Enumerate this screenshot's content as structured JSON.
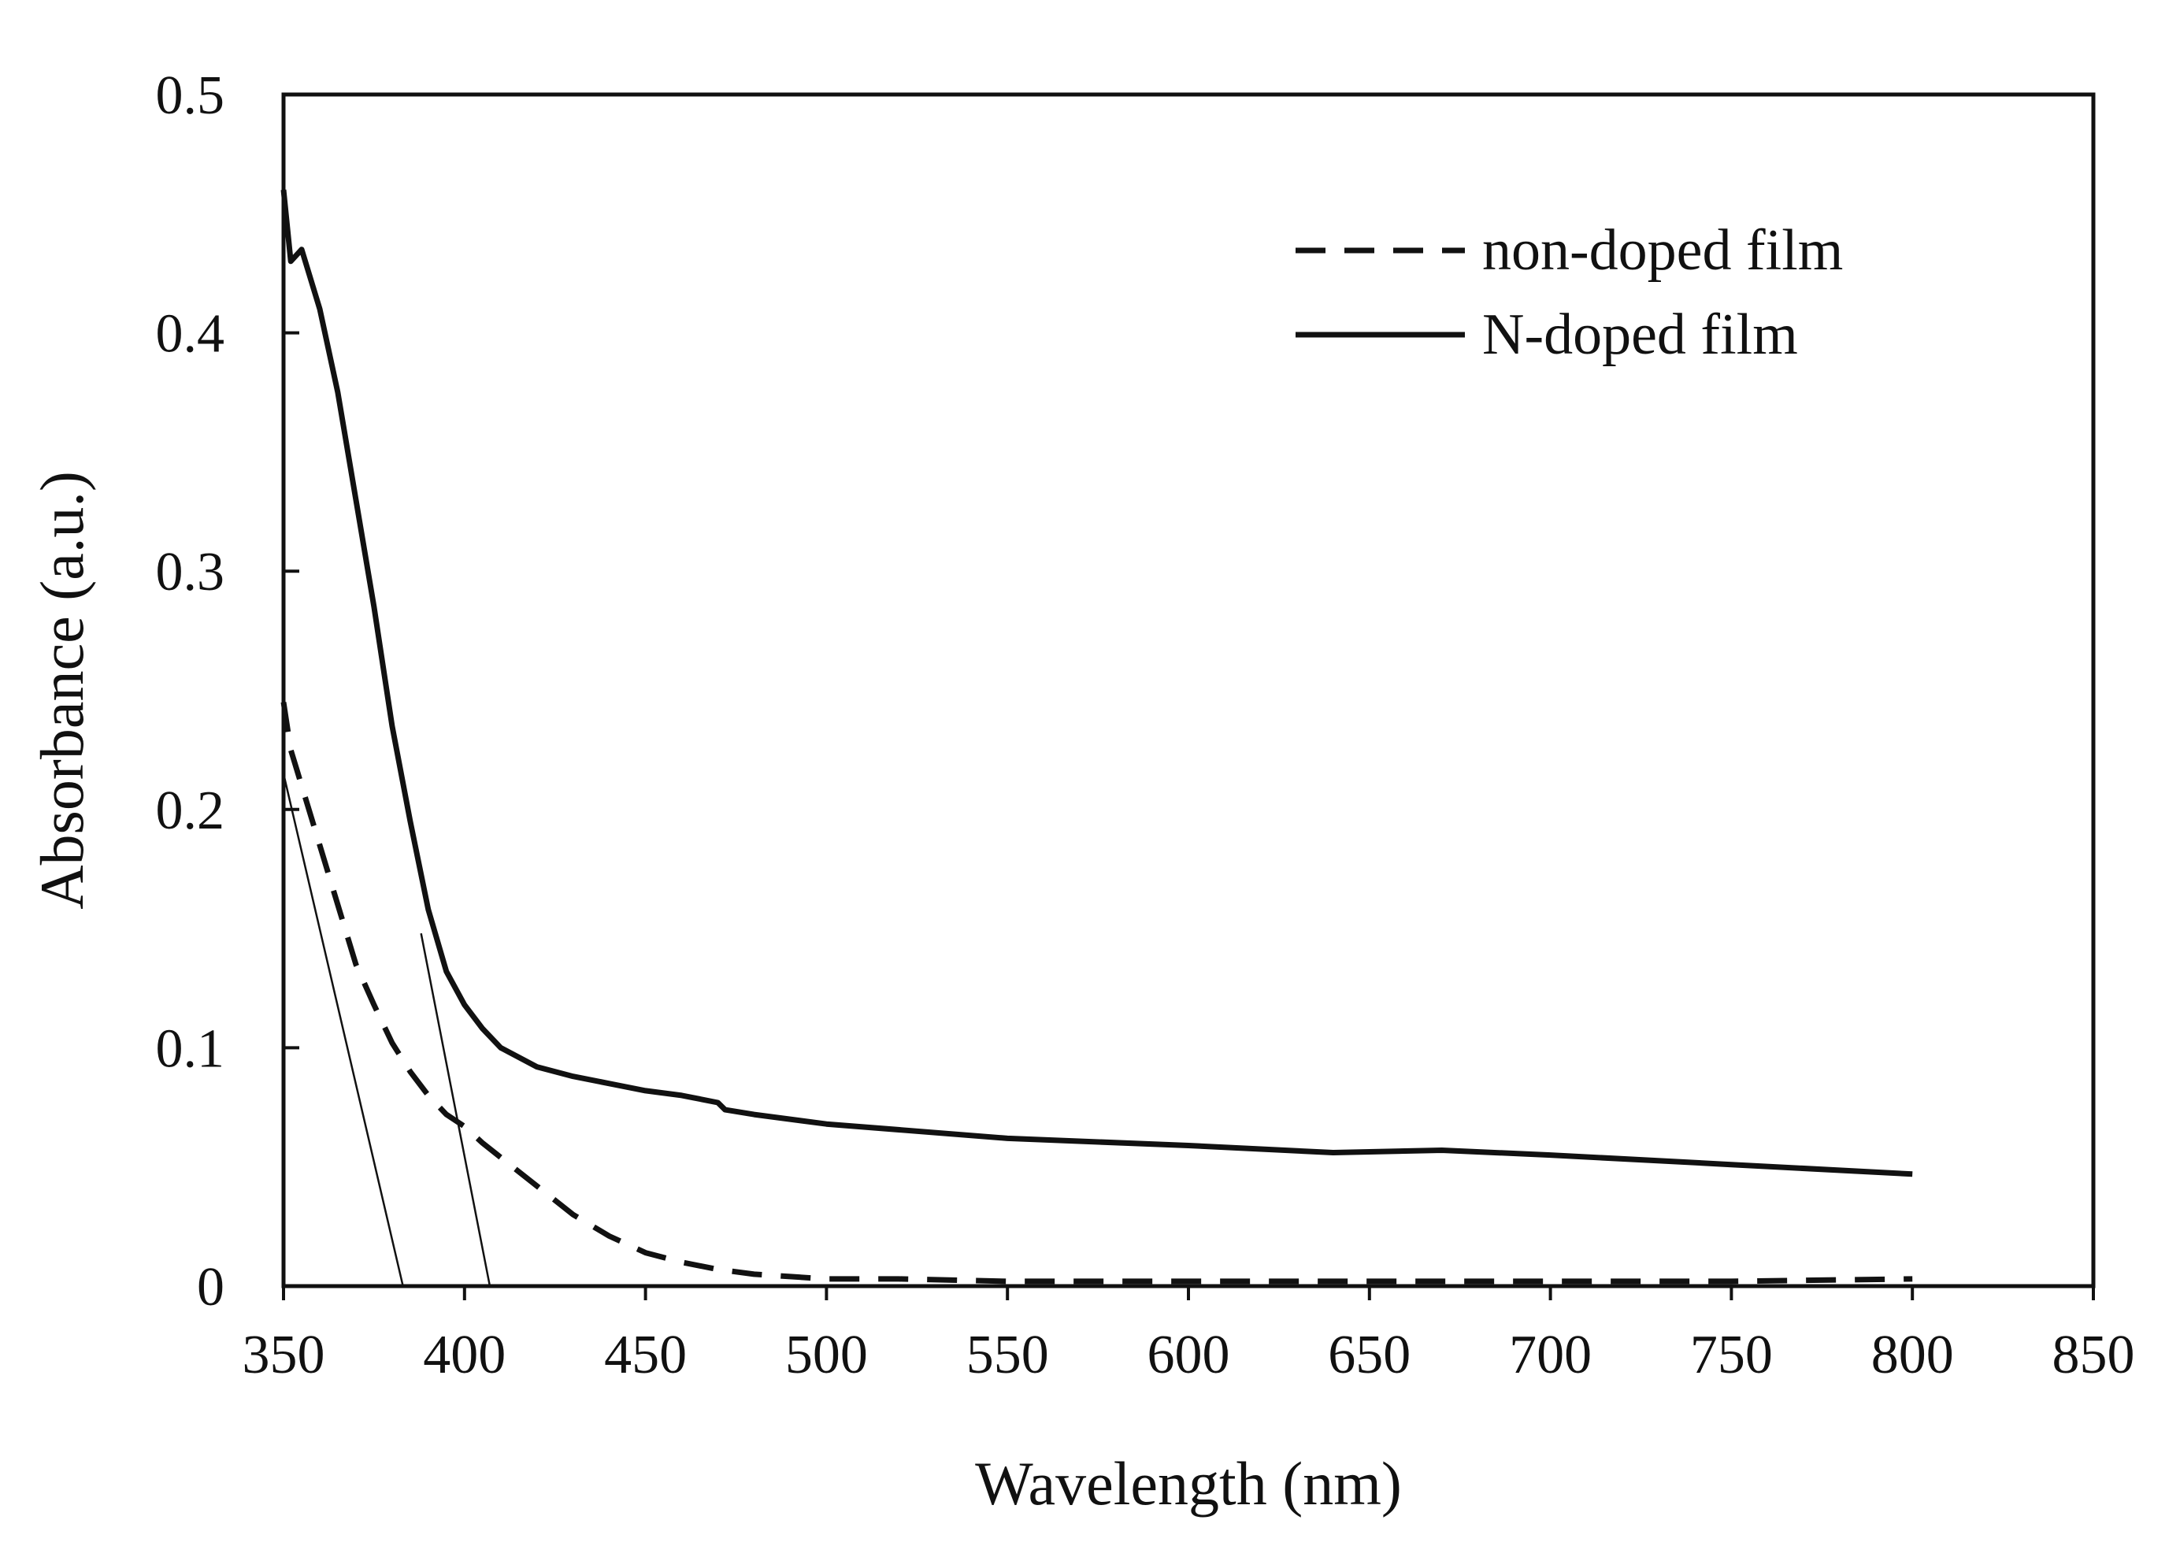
{
  "chart_data": {
    "type": "line",
    "title": "",
    "xlabel": "Wavelength (nm)",
    "ylabel": "Absorbance (a.u.)",
    "xlim": [
      350,
      850
    ],
    "ylim": [
      0,
      0.5
    ],
    "xticks": [
      350,
      400,
      450,
      500,
      550,
      600,
      650,
      700,
      750,
      800,
      850
    ],
    "yticks": [
      0,
      0.1,
      0.2,
      0.3,
      0.4,
      0.5
    ],
    "xtick_labels": [
      "350",
      "400",
      "450",
      "500",
      "550",
      "600",
      "650",
      "700",
      "750",
      "800",
      "850"
    ],
    "ytick_labels": [
      "0",
      "0.1",
      "0.2",
      "0.3",
      "0.4",
      "0.5"
    ],
    "grid": false,
    "legend_position": "top-right",
    "series": [
      {
        "name": "non-doped film",
        "style": "dashed",
        "color": "#111111",
        "x": [
          350,
          352,
          355,
          360,
          365,
          370,
          375,
          380,
          385,
          390,
          395,
          400,
          405,
          410,
          420,
          430,
          440,
          450,
          460,
          470,
          480,
          490,
          500,
          520,
          550,
          600,
          650,
          700,
          750,
          800
        ],
        "y": [
          0.245,
          0.225,
          0.21,
          0.185,
          0.16,
          0.135,
          0.118,
          0.102,
          0.09,
          0.08,
          0.072,
          0.067,
          0.06,
          0.054,
          0.042,
          0.03,
          0.021,
          0.014,
          0.01,
          0.007,
          0.005,
          0.004,
          0.003,
          0.003,
          0.002,
          0.002,
          0.002,
          0.002,
          0.002,
          0.003
        ]
      },
      {
        "name": "N-doped film",
        "style": "solid",
        "color": "#111111",
        "x": [
          350,
          352,
          355,
          360,
          365,
          370,
          375,
          380,
          385,
          390,
          395,
          400,
          405,
          410,
          420,
          430,
          440,
          450,
          460,
          470,
          472,
          480,
          500,
          550,
          600,
          640,
          670,
          700,
          750,
          800
        ],
        "y": [
          0.46,
          0.43,
          0.435,
          0.41,
          0.375,
          0.33,
          0.285,
          0.235,
          0.195,
          0.158,
          0.132,
          0.118,
          0.108,
          0.1,
          0.092,
          0.088,
          0.085,
          0.082,
          0.08,
          0.077,
          0.074,
          0.072,
          0.068,
          0.062,
          0.059,
          0.056,
          0.057,
          0.055,
          0.051,
          0.047
        ]
      }
    ],
    "annotations": [
      {
        "type": "tangent-line",
        "note": "band-edge extrapolation of non-doped film",
        "x": [
          350,
          383
        ],
        "y": [
          0.215,
          0
        ]
      },
      {
        "type": "tangent-line",
        "note": "band-edge extrapolation of N-doped film",
        "x": [
          388,
          407
        ],
        "y": [
          0.148,
          0
        ]
      }
    ]
  }
}
